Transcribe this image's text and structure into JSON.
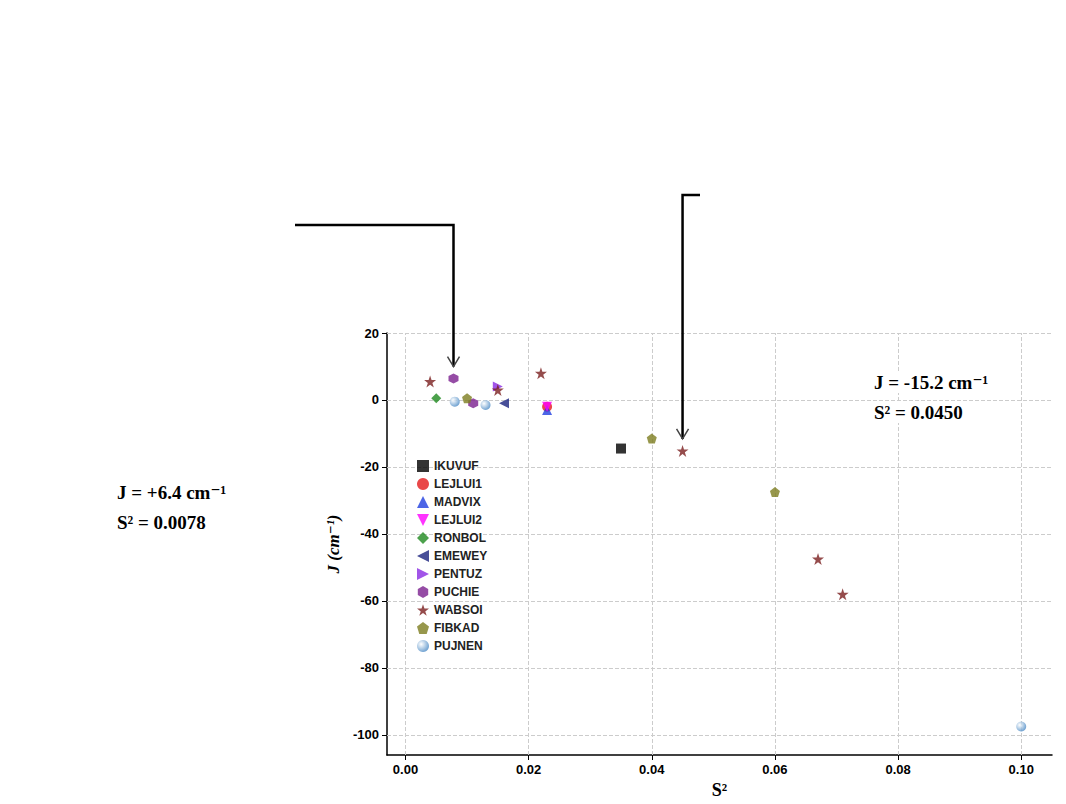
{
  "chart_data": {
    "type": "scatter",
    "xlabel": "S²",
    "ylabel": "J (cm⁻¹)",
    "xlim": [
      -0.003,
      0.105
    ],
    "xticks": [
      {
        "value": 0,
        "label": "0.00"
      },
      0.02,
      0.04,
      0.06,
      0.08,
      {
        "value": 0.1,
        "label": "0.10"
      }
    ],
    "ylim": [
      -106,
      20
    ],
    "yticks": [
      20,
      0,
      -20,
      -40,
      -60,
      -80,
      -100
    ],
    "grid": true,
    "legend": "upper left",
    "series": [
      {
        "name": "IKUVUF",
        "color": "#000000",
        "marker": "square",
        "x": [
          0.035
        ],
        "values": [
          -14.5
        ]
      },
      {
        "name": "LEJLUI1",
        "color": "#e41a1c",
        "marker": "circle",
        "x": [
          0.023
        ],
        "values": [
          -2
        ]
      },
      {
        "name": "MADVIX",
        "color": "#1f3fe0",
        "marker": "triangle",
        "x": [
          0.023
        ],
        "values": [
          -3
        ]
      },
      {
        "name": "LEJLUI2",
        "color": "#ff00ff",
        "marker": "triangle-down",
        "x": [
          0.023
        ],
        "values": [
          -2
        ]
      },
      {
        "name": "RONBOL",
        "color": "#1f8a1f",
        "marker": "diamond",
        "x": [
          0.005
        ],
        "values": [
          0.5
        ]
      },
      {
        "name": "EMEWEY",
        "color": "#1a237e",
        "marker": "triangle-left",
        "x": [
          0.016
        ],
        "values": [
          -1
        ]
      },
      {
        "name": "PENTUZ",
        "color": "#8a2be2",
        "marker": "triangle-right",
        "x": [
          0.015
        ],
        "values": [
          4
        ]
      },
      {
        "name": "PUCHIE",
        "color": "#7b1f8f",
        "marker": "hexagon",
        "x": [
          0.0078,
          0.011
        ],
        "values": [
          6.4,
          -1
        ]
      },
      {
        "name": "WABSOI",
        "color": "#7a1f1f",
        "marker": "star",
        "x": [
          0.004,
          0.015,
          0.022,
          0.045,
          0.067,
          0.071
        ],
        "values": [
          5.5,
          3,
          8,
          -15.2,
          -47.5,
          -58
        ]
      },
      {
        "name": "FIBKAD",
        "color": "#7d7d1f",
        "marker": "pentagon",
        "x": [
          0.01,
          0.04,
          0.06
        ],
        "values": [
          0.5,
          -11.5,
          -27.5
        ]
      },
      {
        "name": "PUJNEN",
        "color": "#3a7fc0",
        "marker": "sphere",
        "x": [
          0.008,
          0.013,
          0.1
        ],
        "values": [
          -0.5,
          -1.5,
          -97.5
        ]
      }
    ],
    "annotations": [
      {
        "lines": [
          "J = +6.4 cm⁻¹",
          "S² = 0.0078"
        ],
        "x": 0.0078,
        "y": 6.4
      },
      {
        "lines": [
          "J = -15.2 cm⁻¹",
          "S² = 0.0450"
        ],
        "x": 0.045,
        "y": -15.2
      }
    ]
  }
}
